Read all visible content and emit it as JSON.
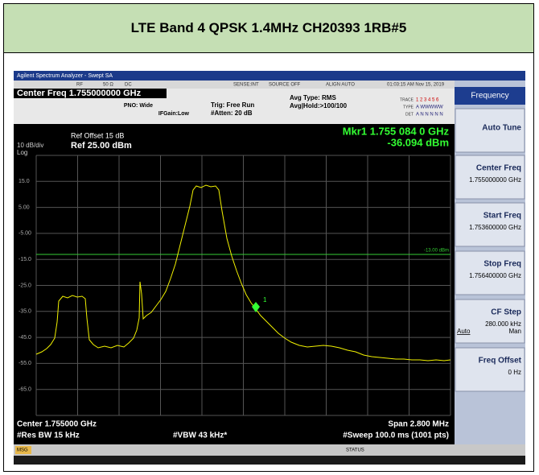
{
  "header": {
    "title": "LTE Band 4 QPSK 1.4MHz CH20393 1RB#5"
  },
  "analyzer": {
    "title_bar": "Agilent Spectrum Analyzer - Swept SA",
    "status_row": [
      "RF",
      "50 Ω",
      "DC",
      "SENSE:INT",
      "SOURCE OFF",
      "ALIGN AUTO",
      "01:03:15 AM Nov 15, 2019"
    ],
    "center_freq": "Center Freq 1.755000000 GHz",
    "pno": "PNO: Wide",
    "ifgain": "IFGain:Low",
    "trig": "Trig: Free Run",
    "atten": "#Atten: 20 dB",
    "avg_type": "Avg Type: RMS",
    "avg_hold": "Avg|Hold:>100/100",
    "trace_labels": [
      "TRACE",
      "TYPE",
      "DET"
    ],
    "trace_values": [
      "1 2 3 4 5 6",
      "A WWWWW",
      "A N N N N N"
    ],
    "ref_offset": "Ref Offset 15 dB",
    "ref_level": "Ref 25.00 dBm",
    "scale": "10 dB/div",
    "scale_type": "Log",
    "marker_freq": "Mkr1 1.755 084 0 GHz",
    "marker_level": "-36.094 dBm",
    "marker_label": "1",
    "limit_label": "-13.00 dBm",
    "y_labels": [
      "15.0",
      "5.00",
      "-5.00",
      "-15.0",
      "-25.0",
      "-35.0",
      "-45.0",
      "-55.0",
      "-65.0"
    ],
    "center": "Center 1.755000 GHz",
    "span": "Span 2.800 MHz",
    "res_bw": "#Res BW 15 kHz",
    "vbw": "#VBW 43 kHz*",
    "sweep": "#Sweep  100.0 ms (1001 pts)",
    "msg": "MSG",
    "status": "STATUS"
  },
  "softkeys": {
    "menu": "Frequency",
    "items": [
      {
        "label": "Auto Tune"
      },
      {
        "label": "Center Freq",
        "value": "1.755000000 GHz"
      },
      {
        "label": "Start Freq",
        "value": "1.753600000 GHz"
      },
      {
        "label": "Stop Freq",
        "value": "1.756400000 GHz"
      },
      {
        "label": "CF Step",
        "value": "280.000 kHz",
        "left": "Auto",
        "right": "Man"
      },
      {
        "label": "Freq Offset",
        "value": "0 Hz"
      }
    ]
  }
}
